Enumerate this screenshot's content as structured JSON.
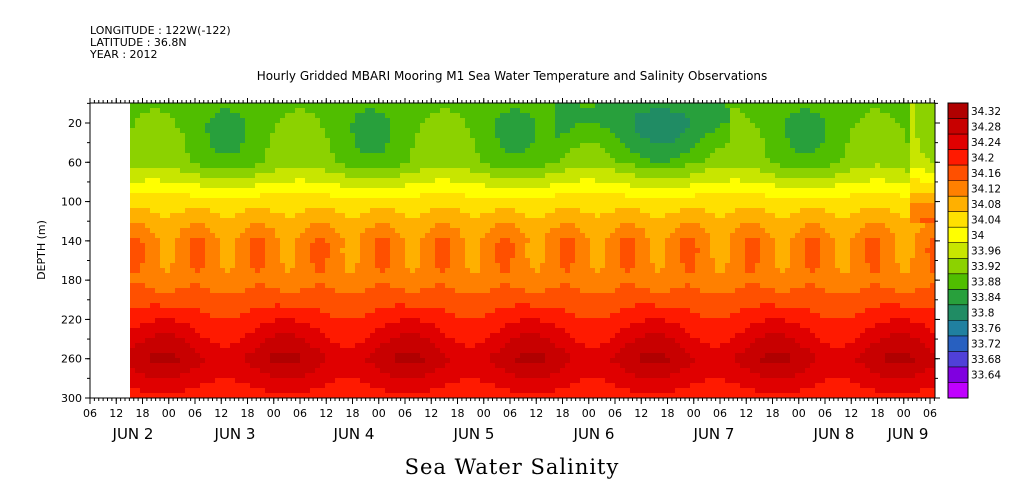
{
  "header": {
    "longitude": "LONGITUDE : 122W(-122)",
    "latitude": "LATITUDE : 36.8N",
    "year": "YEAR : 2012"
  },
  "chart_data": {
    "type": "heatmap",
    "title": "Hourly Gridded MBARI Mooring M1 Sea Water Temperature and Salinity Observations",
    "bottom_title": "Sea Water Salinity",
    "ylabel": "DEPTH (m)",
    "y_ticks": [
      "20",
      "60",
      "100",
      "140",
      "180",
      "220",
      "260",
      "300"
    ],
    "x_hour_ticks": [
      "06",
      "12",
      "18",
      "00",
      "06",
      "12",
      "18",
      "00",
      "06",
      "12",
      "18",
      "00",
      "06",
      "12",
      "18",
      "00",
      "06",
      "12",
      "18",
      "00",
      "06",
      "12",
      "18",
      "00",
      "06",
      "12",
      "18",
      "00",
      "06",
      "12",
      "18",
      "00",
      "06"
    ],
    "x_date_labels": [
      "JUN  2",
      "JUN  3",
      "JUN  4",
      "JUN  5",
      "JUN  6",
      "JUN  7",
      "JUN  8",
      "JUN  9"
    ],
    "colorbar_labels": [
      "34.32",
      "34.28",
      "34.24",
      "34.2",
      "34.16",
      "34.12",
      "34.08",
      "34.04",
      "34",
      "33.96",
      "33.92",
      "33.88",
      "33.84",
      "33.8",
      "33.76",
      "33.72",
      "33.68",
      "33.64"
    ],
    "colorbar_colors": [
      "#b00000",
      "#c80000",
      "#e00000",
      "#ff1a00",
      "#ff5000",
      "#ff8000",
      "#ffb000",
      "#ffe000",
      "#ffff00",
      "#c8e600",
      "#8cd200",
      "#50be00",
      "#28a03c",
      "#208c64",
      "#2080a0",
      "#2860c0",
      "#5040d8",
      "#8000e0",
      "#c000ff"
    ],
    "depth_profile": [
      {
        "depth": 20,
        "salinity": 33.88
      },
      {
        "depth": 60,
        "salinity": 33.9
      },
      {
        "depth": 100,
        "salinity": 34.04
      },
      {
        "depth": 140,
        "salinity": 34.12
      },
      {
        "depth": 180,
        "salinity": 34.12
      },
      {
        "depth": 220,
        "salinity": 34.2
      },
      {
        "depth": 260,
        "salinity": 34.28
      },
      {
        "depth": 300,
        "salinity": 34.2
      }
    ]
  }
}
